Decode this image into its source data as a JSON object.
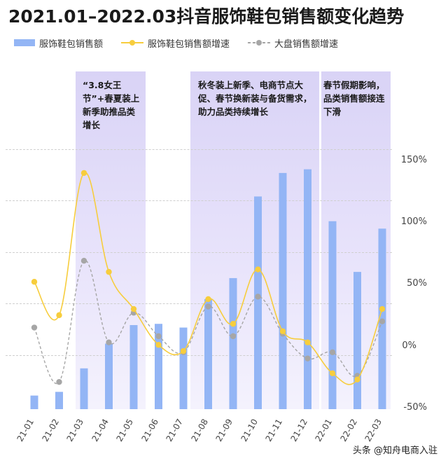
{
  "title": "2021.01–2022.03抖音服饰鞋包销售额变化趋势",
  "legend": {
    "bar": "服饰鞋包销售额",
    "yellow": "服饰鞋包销售额增速",
    "gray": "大盘销售额增速"
  },
  "annotations": [
    "“3.8女王节”+春夏装上新季助推品类增长",
    "秋冬装上新季、电商节点大促、春节换新装与备货需求，助力品类持续增长",
    "春节假期影响，品类销售额接连下滑"
  ],
  "footer": "头条 @知舟电商入驻",
  "colors": {
    "bar": "#93b5f5",
    "yellow": "#f7cd3d",
    "gray": "#a6a6a6",
    "band": "#dcd6f7"
  },
  "chart_data": {
    "type": "bar",
    "categories": [
      "21-01",
      "21-02",
      "21-03",
      "21-04",
      "21-05",
      "21-06",
      "21-07",
      "21-08",
      "21-09",
      "21-10",
      "21-11",
      "21-12",
      "22-01",
      "22-02",
      "22-03"
    ],
    "ylabel": "",
    "ylim_right": [
      -50,
      150
    ],
    "yticks_right": [
      "150%",
      "100%",
      "50%",
      "0%",
      "-50%"
    ],
    "series": [
      {
        "name": "服饰鞋包销售额",
        "kind": "bar",
        "values": [
          -40,
          -37,
          -18,
          2,
          17,
          18,
          15,
          38,
          55,
          121,
          140,
          143,
          101,
          60,
          95
        ]
      },
      {
        "name": "服饰鞋包销售额增速",
        "kind": "line",
        "values": [
          52,
          25,
          140,
          60,
          30,
          1,
          -4,
          38,
          18,
          62,
          12,
          3,
          -22,
          -27,
          30
        ]
      },
      {
        "name": "大盘销售额增速",
        "kind": "line",
        "values": [
          15,
          -29,
          69,
          3,
          27,
          8,
          -5,
          32,
          8,
          40,
          10,
          -10,
          -5,
          -24,
          20
        ]
      }
    ]
  }
}
